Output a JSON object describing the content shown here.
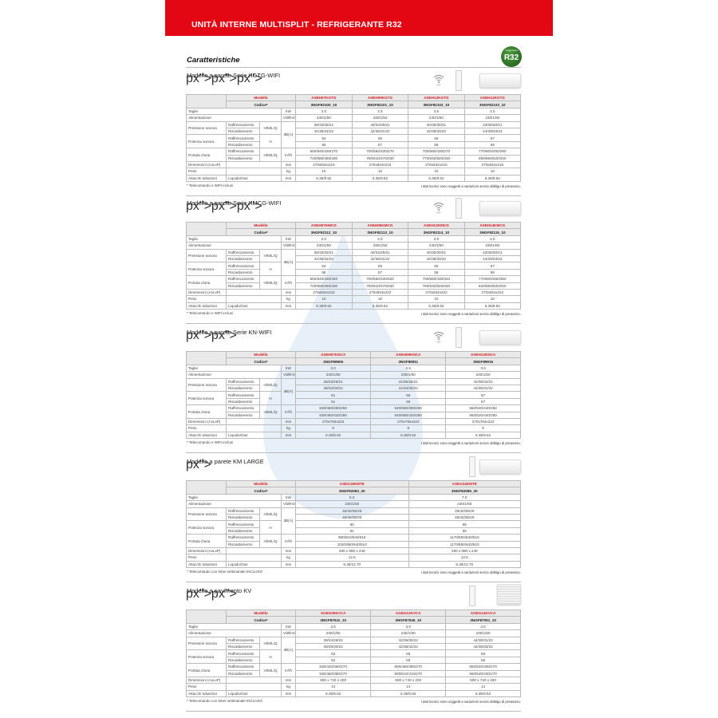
{
  "header": {
    "title": "UNITÀ INTERNE MULTISPLIT - REFRIGERANTE R32"
  },
  "badge": {
    "text": "R32",
    "caption": "refrigerante"
  },
  "page_title": "Caratteristiche",
  "colors": {
    "brand_red": "#e30613",
    "model_red": "#d71920",
    "badge_green": "#2f7a2a"
  },
  "labels": {
    "modello": "Modello",
    "codice": "Codice*",
    "taglie": "Taglie",
    "alimentazione": "Alimentazione",
    "pressione": "Pressione sonora",
    "potenza": "Potenza sonora",
    "portata": "Portata d'aria",
    "dimensioni": "Dimensioni (AxLxP)",
    "peso": "Peso",
    "attacchi": "Attacchi tubazioni",
    "raff": "Raffrescamento",
    "risc": "Riscaldamento",
    "hmlq": "H/M/L/Q",
    "h": "H",
    "liquido_gas": "Liquido/Gas",
    "u_kw": "kW",
    "u_alim": "V/Ø/Hz",
    "u_db": "dB(A)",
    "u_m3h": "m³/h",
    "u_mm": "mm",
    "u_kg": "kg",
    "wifi": "WIFI"
  },
  "sections": [
    {
      "title": "Modello a parete Serie KGTG-WIFI",
      "icons": [
        "wifi-icon",
        "remote-icon",
        "wall-unit-image"
      ],
      "models": [
        "ASEH07KGTG",
        "ASEH09KGTG",
        "ASEH12KGTG",
        "ASEH14KGTG"
      ],
      "codes": [
        "3NGF82100_10",
        "3NGF82101_10",
        "3NGF82102_10",
        "3NGF82103_10"
      ],
      "taglie": [
        "2.0",
        "2.5",
        "3.5",
        "4.0"
      ],
      "alim": [
        "230/1/50",
        "230/1/50",
        "230/1/50",
        "230/1/50"
      ],
      "press_raff": [
        "38/33/29/21",
        "40/34/29/21",
        "40/35/30/21",
        "43/36/30/21"
      ],
      "press_risc": [
        "41/35/31/22",
        "42/36/31/22",
        "42/38/33/22",
        "44/39/33/24"
      ],
      "pot_raff": [
        "54",
        "55",
        "56",
        "57"
      ],
      "pot_risc": [
        "56",
        "57",
        "58",
        "59"
      ],
      "port_raff": [
        "650/540/430/270",
        "700/560/430/270",
        "700/560/430/270",
        "770/600/450/280"
      ],
      "port_risc": [
        "720/580/460/330",
        "750/610/470/330",
        "770/640/520/330",
        "800/660/520/340"
      ],
      "dim": [
        "270x834x215",
        "270x834x215",
        "270x834x215",
        "270x834x215"
      ],
      "peso": [
        "10",
        "10",
        "10",
        "10"
      ],
      "attacchi": [
        "6.35/9.52",
        "6.35/9.52",
        "6.35/9.52",
        "6.35/9.52"
      ],
      "footnote": "* Telecomando e WIFI inclusi",
      "disclaimer": "I dati tecnici sono soggetti a variazioni senza obbligo di preavviso."
    },
    {
      "title": "Modello a parete Serie KMCG-WIFI",
      "icons": [
        "wifi-icon",
        "remote-icon",
        "wall-unit-image"
      ],
      "models": [
        "ASEH07KMCG",
        "ASEH09KMCG",
        "ASEH12KMCG",
        "ASEH14KMCG"
      ],
      "codes": [
        "3NGF82112_10",
        "3NGF82113_10",
        "3NGF82114_10",
        "3NGF82115_10"
      ],
      "taglie": [
        "2.0",
        "2.5",
        "3.5",
        "4.0"
      ],
      "alim": [
        "230/1/50",
        "230/1/50",
        "230/1/50",
        "230/1/50"
      ],
      "press_raff": [
        "38/33/29/21",
        "40/34/29/21",
        "40/35/30/21",
        "43/36/30/21"
      ],
      "press_risc": [
        "41/35/31/22",
        "42/36/31/22",
        "42/38/33/22",
        "44/39/33/24"
      ],
      "pot_raff": [
        "54",
        "55",
        "55",
        "57"
      ],
      "pot_risc": [
        "56",
        "57",
        "58",
        "59"
      ],
      "port_raff": [
        "650/540/430/320",
        "700/560/430/320",
        "700/560/430/320",
        "770/600/450/350"
      ],
      "port_risc": [
        "720/580/460/330",
        "750/610/470/330",
        "780/640/520/330",
        "820/660/520/340"
      ],
      "dim": [
        "270x834x222",
        "270x834x222",
        "270x834x222",
        "270x834x222"
      ],
      "peso": [
        "10",
        "10",
        "10",
        "10"
      ],
      "attacchi": [
        "6.35/9.52",
        "6.35/9.52",
        "6.35/9.52",
        "6.35/9.52"
      ],
      "footnote": "* Telecomando e WIFI inclusi",
      "disclaimer": "I dati tecnici sono soggetti a variazioni senza obbligo di preavviso."
    },
    {
      "title": "Modello a parete Serie KN-WIFI",
      "icons": [
        "wifi-icon",
        "remote-icon",
        "wall-unit-image"
      ],
      "models": [
        "ASEH07KNCA",
        "ASEH09KNCA",
        "ASEH12KNCA"
      ],
      "codes": [
        "3NGF89906",
        "3NGF89911",
        "3NGF89916"
      ],
      "taglie": [
        "2.0",
        "2.5",
        "3.5"
      ],
      "alim": [
        "230/1/50",
        "230/1/50",
        "230/1/50"
      ],
      "press_raff": [
        "36/33/28/21",
        "41/35/28/21",
        "42/36/32/21"
      ],
      "press_risc": [
        "36/33/30/22",
        "41/34/30/22",
        "42/35/31/22"
      ],
      "pot_raff": [
        "51",
        "56",
        "57"
      ],
      "pot_risc": [
        "51",
        "56",
        "57"
      ],
      "port_raff": [
        "530/460/390/250",
        "640/580/390/250",
        "660/520/440/250"
      ],
      "port_risc": [
        "530/480/420/280",
        "640/580/420/280",
        "660/520/440/280"
      ],
      "dim": [
        "270x784x222",
        "270x784x222",
        "270x784x222"
      ],
      "peso": [
        "9",
        "9",
        "9"
      ],
      "attacchi": [
        "6.35/9.52",
        "6.35/9.52",
        "6.35/9.52"
      ],
      "footnote": "* Telecomando e WIFI inclusi",
      "disclaimer": "I dati tecnici sono soggetti a variazioni senza obbligo di preavviso."
    },
    {
      "title": "Modello a parete KM LARGE",
      "icons": [
        "remote-icon",
        "wall-unit-image"
      ],
      "models": [
        "ASEG18KMTE",
        "ASEG24KMTE"
      ],
      "codes": [
        "3NGF82083_20",
        "3NGF82085_20"
      ],
      "taglie": [
        "5.0",
        "7.0"
      ],
      "alim": [
        "230/1/50",
        "230/1/50"
      ],
      "press_raff": [
        "45/40/35/29",
        "49/40/35/29"
      ],
      "press_risc": [
        "46/40/35/29",
        "49/40/35/29"
      ],
      "pot_raff": [
        "60",
        "65"
      ],
      "pot_risc": [
        "61",
        "65"
      ],
      "port_raff": [
        "980/810/640/510",
        "1170/850/640/510"
      ],
      "port_risc": [
        "1020/850/640/510",
        "1170/850/640/510"
      ],
      "dim": [
        "280 x 980 x 240",
        "280 x 980 x 240"
      ],
      "peso": [
        "12.5",
        "12.5"
      ],
      "attacchi": [
        "6.35/12.70",
        "6.35/12.70"
      ],
      "footnote": "* Telecomando con timer settimanale INCLUSO",
      "disclaimer": "I dati tecnici sono soggetti a variazioni senza obbligo di preavviso."
    },
    {
      "title": "Modello a pavimento KV",
      "icons": [
        "remote-icon",
        "floor-unit-image"
      ],
      "models": [
        "AGEG09KVCA",
        "AGEG12KVCA",
        "AGEG14KVCA"
      ],
      "codes": [
        "3NGF87041_10",
        "3NGF87046_10",
        "3NGF87051_10"
      ],
      "taglie": [
        "2.5",
        "3.5",
        "4.0"
      ],
      "alim": [
        "230/1/50",
        "230/1/50",
        "230/1/50"
      ],
      "press_raff": [
        "39/34/28/22",
        "42/36/30/22",
        "44/38/31/22"
      ],
      "press_risc": [
        "39/35/30/22",
        "42/38/32/22",
        "44/38/33/22"
      ],
      "pot_raff": [
        "52",
        "55",
        "56"
      ],
      "pot_risc": [
        "52",
        "55",
        "56"
      ],
      "port_raff": [
        "530/440/360/270",
        "600/490/380/270",
        "650/520/400/270"
      ],
      "port_risc": [
        "530/460/380/270",
        "600/510/410/270",
        "650/540/430/270"
      ],
      "dim": [
        "600 x 740 x 200",
        "600 x 740 x 200",
        "600 x 740 x 200"
      ],
      "peso": [
        "14",
        "14",
        "14"
      ],
      "attacchi": [
        "6.35/9.52",
        "6.35/9.52",
        "6.35/9.52"
      ],
      "footnote": "* Telecomando con timer settimanale INCLUSO",
      "disclaimer": "I dati tecnici sono soggetti a variazioni senza obbligo di preavviso."
    }
  ]
}
